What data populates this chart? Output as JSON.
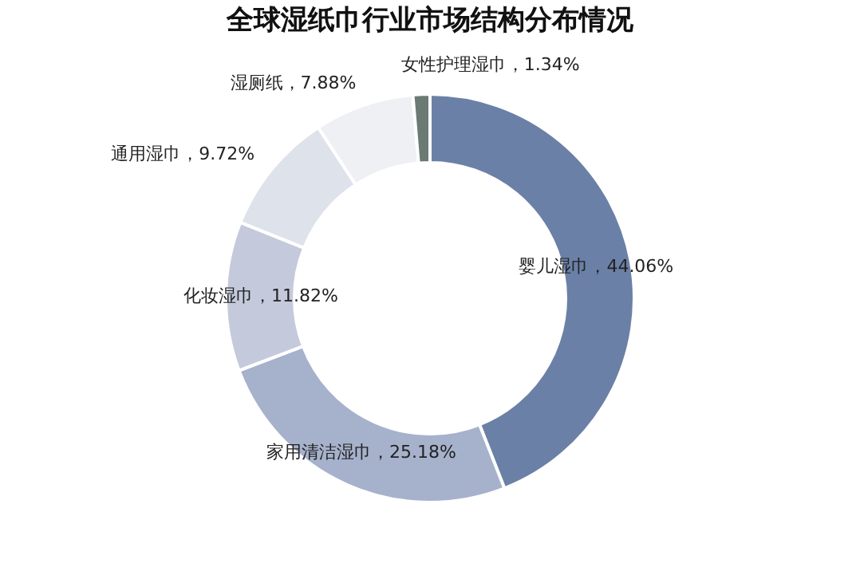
{
  "chart_data": {
    "type": "donut",
    "title": "全球湿纸巾行业市场结构分布情况",
    "categories": [
      "婴儿湿巾",
      "家用清洁湿巾",
      "化妆湿巾",
      "通用湿巾",
      "湿厕纸",
      "女性护理湿巾"
    ],
    "values": [
      44.06,
      25.18,
      11.82,
      9.72,
      7.88,
      1.34
    ],
    "value_labels": [
      "44.06%",
      "25.18%",
      "11.82%",
      "9.72%",
      "7.88%",
      "1.34%"
    ],
    "colors": [
      "#6b80a6",
      "#a6b2cc",
      "#c4cadb",
      "#dee2eb",
      "#eef0f4",
      "#6b7a72"
    ],
    "legend": false
  }
}
